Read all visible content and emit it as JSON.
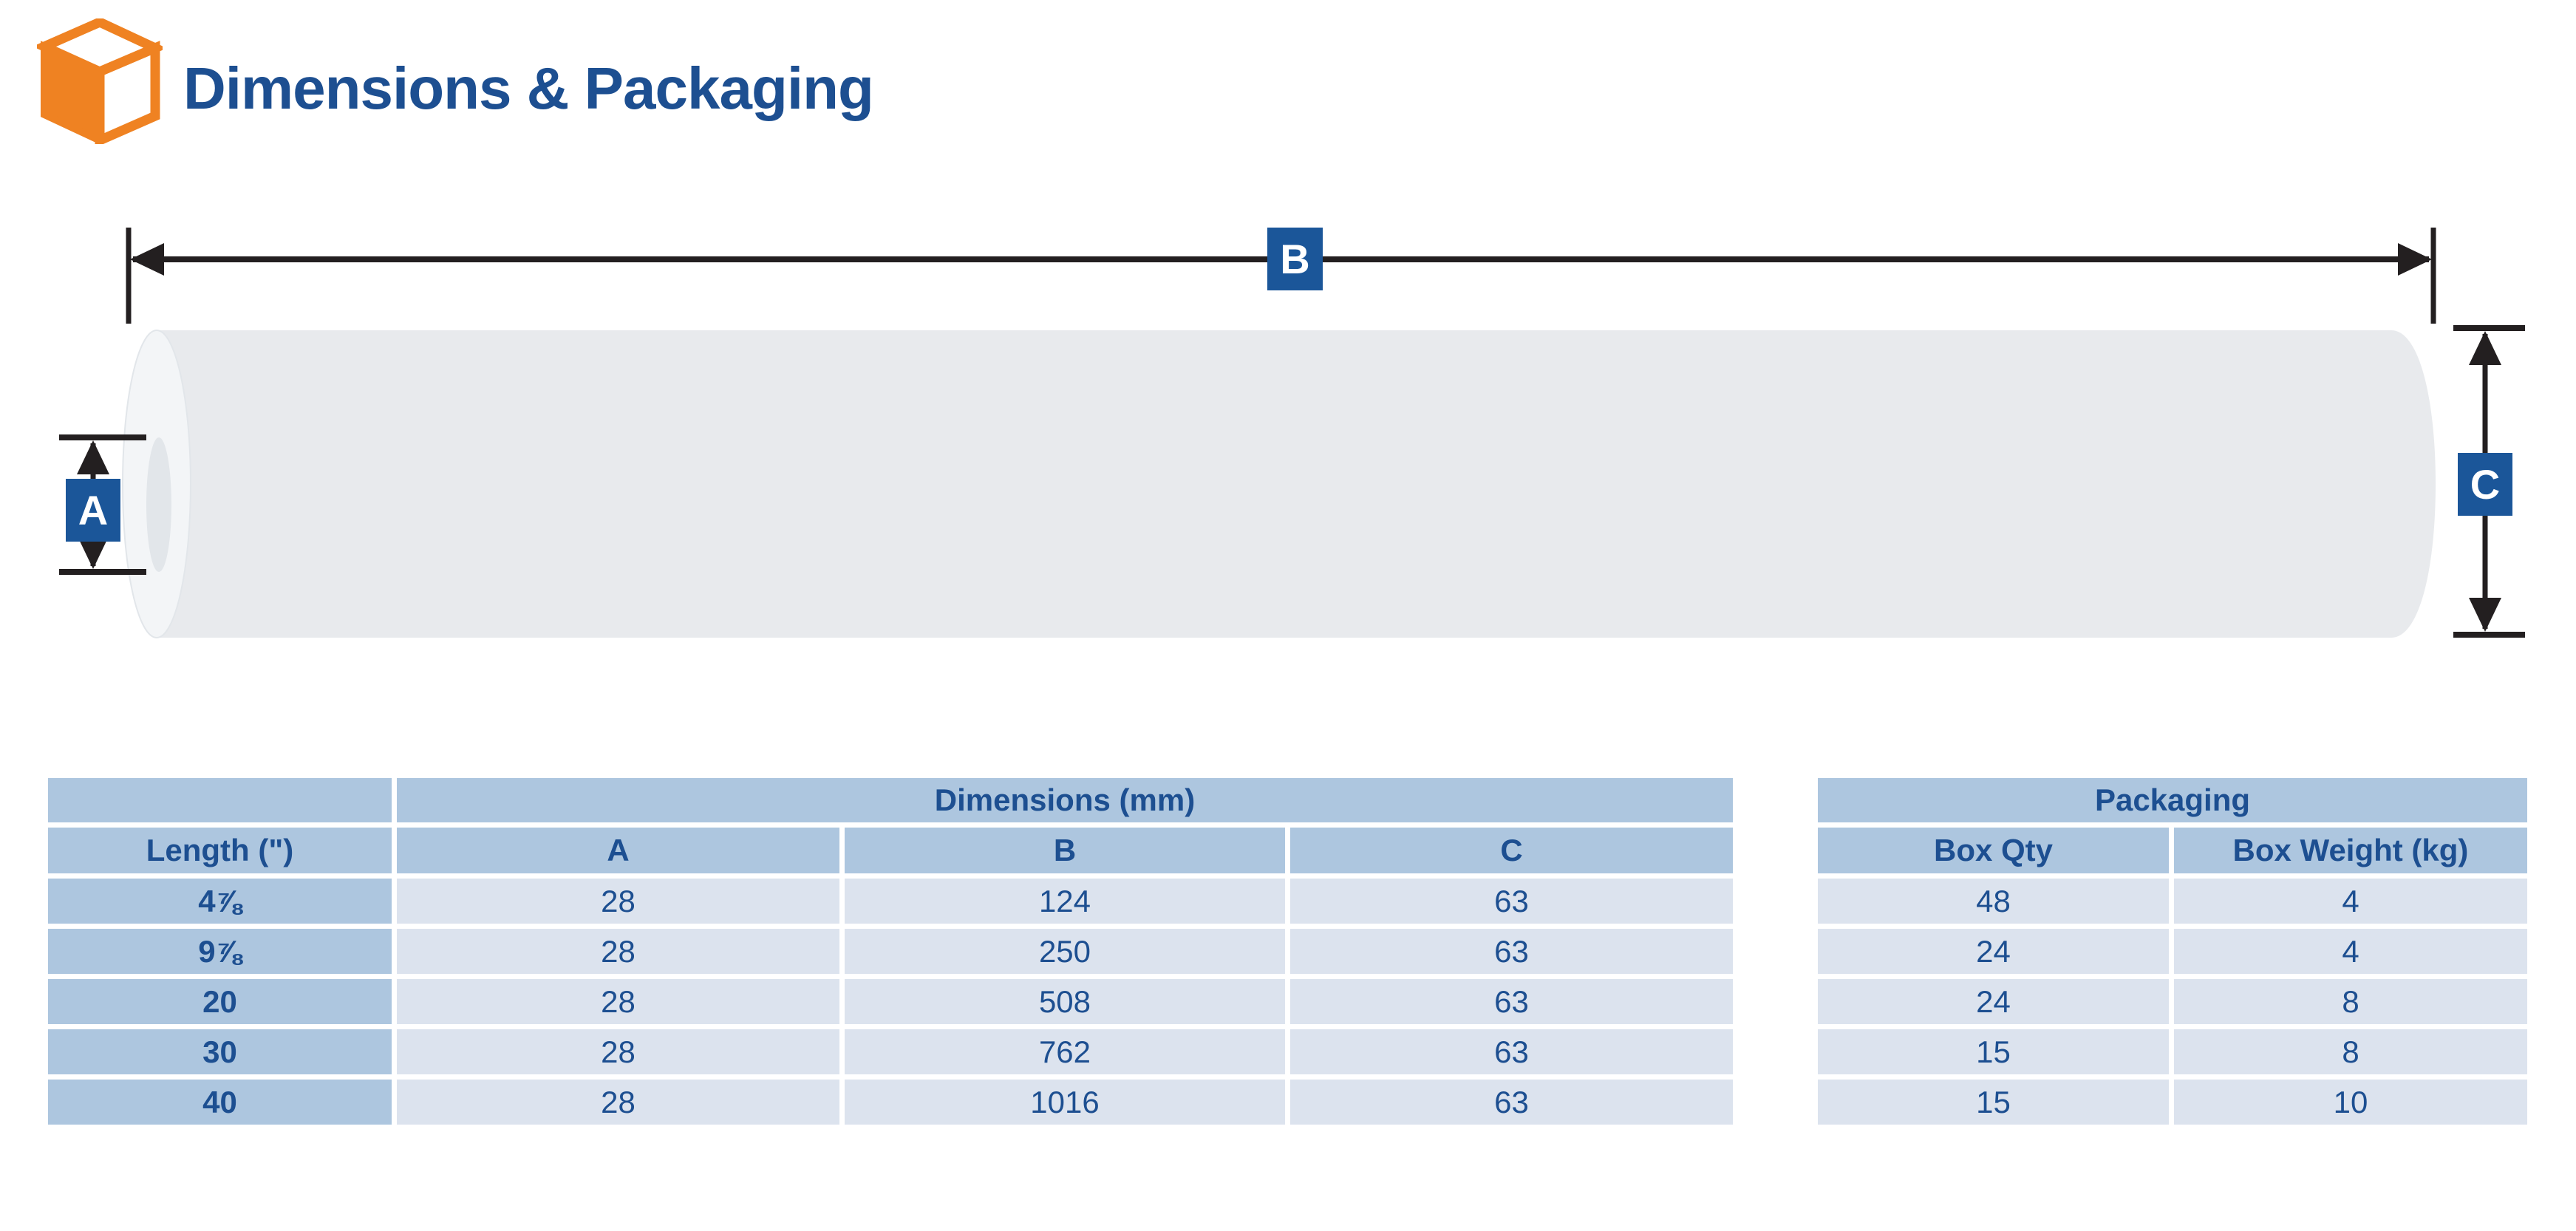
{
  "header": {
    "title": "Dimensions & Packaging",
    "icon": "box-cube-icon"
  },
  "diagram": {
    "label_a": "A",
    "label_b": "B",
    "label_c": "C"
  },
  "dimensions_table": {
    "group_header": "Dimensions (mm)",
    "columns": [
      "Length (\")",
      "A",
      "B",
      "C"
    ],
    "rows": [
      [
        "4⅞",
        "28",
        "124",
        "63"
      ],
      [
        "9⅞",
        "28",
        "250",
        "63"
      ],
      [
        "20",
        "28",
        "508",
        "63"
      ],
      [
        "30",
        "28",
        "762",
        "63"
      ],
      [
        "40",
        "28",
        "1016",
        "63"
      ]
    ]
  },
  "packaging_table": {
    "group_header": "Packaging",
    "columns": [
      "Box Qty",
      "Box Weight (kg)"
    ],
    "rows": [
      [
        "48",
        "4"
      ],
      [
        "24",
        "4"
      ],
      [
        "24",
        "8"
      ],
      [
        "15",
        "8"
      ],
      [
        "15",
        "10"
      ]
    ]
  },
  "colors": {
    "brand_navy": "#1d4f91",
    "label_box_blue": "#1b5699",
    "table_header_bg": "#adc6df",
    "table_cell_bg": "#dce3ee",
    "icon_orange": "#ef8222",
    "dimension_line": "#231f20",
    "cylinder_body": "#e8eaed",
    "cylinder_cap": "#f3f5f7",
    "cylinder_hole": "#e2e6ea"
  }
}
